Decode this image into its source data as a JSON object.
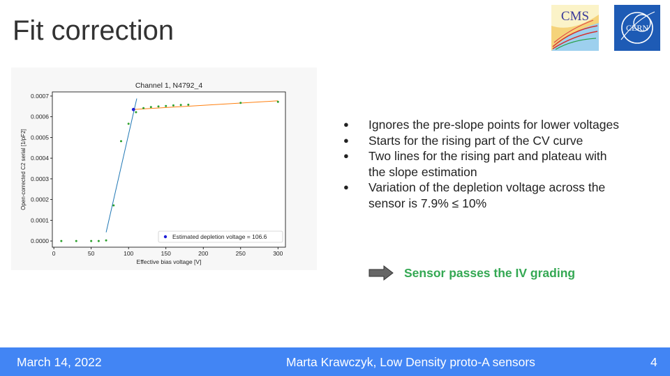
{
  "slide": {
    "title": "Fit correction",
    "logos": {
      "left": "CMS",
      "right": "CERN"
    },
    "bullets": [
      "Ignores the pre-slope points for lower voltages",
      "Starts for the rising part of the CV curve",
      "Two lines for the rising part and plateau with the slope estimation",
      "Variation of the depletion voltage across the sensor is 7.9%  ≤ 10%"
    ],
    "verdict": "Sensor passes the IV grading",
    "arrow_icon": "right-arrow-icon",
    "footer": {
      "date": "March 14, 2022",
      "author": "Marta Krawczyk, Low Density proto-A sensors",
      "page": "4",
      "bg_color": "#4285f4"
    },
    "colors": {
      "verdict": "#34a853",
      "points": "#2ca02c",
      "rise_fit": "#1f77b4",
      "plateau_fit": "#ff7f0e",
      "depletion_marker": "#1f1fd6"
    }
  },
  "chart_data": {
    "type": "scatter",
    "title": "Channel 1, N4792_4",
    "xlabel": "Effective bias voltage [V]",
    "ylabel": "Open-corrected C2 serial [1/pF2]",
    "xlim": [
      -2,
      310
    ],
    "ylim": [
      -3e-05,
      0.00072
    ],
    "xticks": [
      0,
      50,
      100,
      150,
      200,
      250,
      300
    ],
    "yticks": [
      0,
      0.0001,
      0.0002,
      0.0003,
      0.0004,
      0.0005,
      0.0006,
      0.0007
    ],
    "xtick_labels": [
      "0",
      "50",
      "100",
      "150",
      "200",
      "250",
      "300"
    ],
    "ytick_labels": [
      "0.0000",
      "0.0001",
      "0.0002",
      "0.0003",
      "0.0004",
      "0.0005",
      "0.0006",
      "0.0007"
    ],
    "grid": false,
    "legend": {
      "entries": [
        "Estimated depletion voltage = 106.6"
      ],
      "placement": "lower-right"
    },
    "series": [
      {
        "kind": "points",
        "color": "#2ca02c",
        "x": [
          10,
          30,
          50,
          60,
          70,
          80,
          90,
          100,
          110,
          120,
          130,
          140,
          150,
          160,
          170,
          180,
          250,
          300
        ],
        "y": [
          0.0,
          0.0,
          0.0,
          0.0,
          3e-06,
          0.000172,
          0.000482,
          0.000566,
          0.000622,
          0.000642,
          0.000647,
          0.00065,
          0.000652,
          0.000655,
          0.000657,
          0.000658,
          0.000667,
          0.000672
        ]
      },
      {
        "kind": "line",
        "color": "#1f77b4",
        "x": [
          70,
          111
        ],
        "y": [
          4.2e-05,
          0.000688
        ]
      },
      {
        "kind": "line",
        "color": "#ff7f0e",
        "x": [
          106.6,
          300
        ],
        "y": [
          0.000635,
          0.000677
        ]
      },
      {
        "kind": "marker",
        "color": "#1f1fd6",
        "x": [
          106.6
        ],
        "y": [
          0.000635
        ]
      }
    ]
  }
}
